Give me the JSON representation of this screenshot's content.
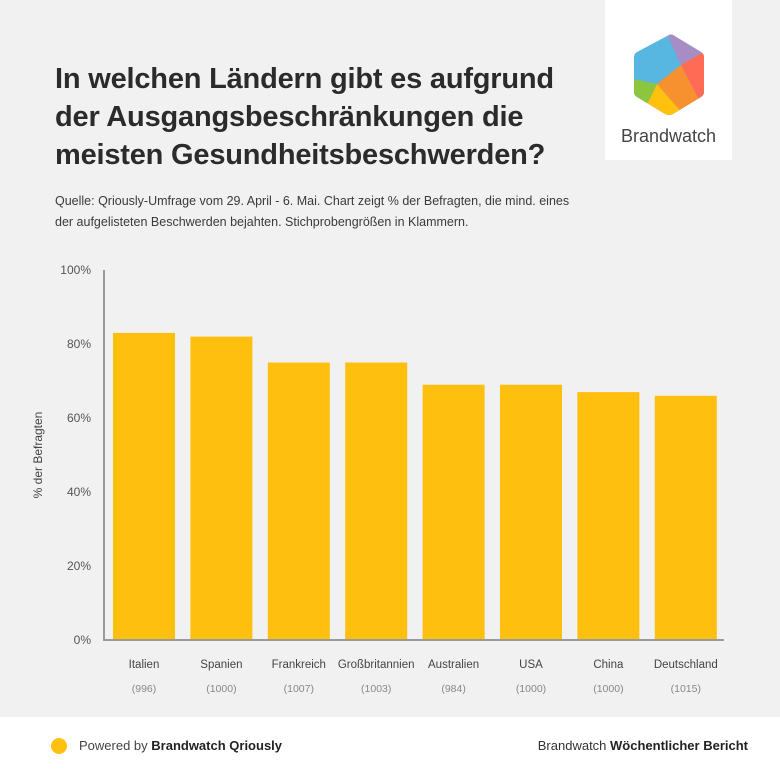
{
  "header": {
    "title": "In welchen Ländern gibt es aufgrund der Ausgangsbeschränkungen die meisten Gesundheitsbeschwerden?",
    "subtitle": "Quelle: Qriously-Umfrage vom 29. April - 6. Mai. Chart zeigt % der Befragten, die mind. eines der aufgelisteten Beschwerden bejahten. Stichprobengrößen in Klammern."
  },
  "logo": {
    "name": "Brandwatch",
    "icon": "brandwatch-hexagon-logo",
    "colors": [
      "#57b7e0",
      "#a88cc4",
      "#ff6b55",
      "#f7902f",
      "#ffc10e",
      "#8cc63f"
    ]
  },
  "chart_data": {
    "type": "bar",
    "title": "",
    "xlabel": "",
    "ylabel": "% der Befragten",
    "ylim": [
      0,
      100
    ],
    "yticks": [
      0,
      20,
      40,
      60,
      80,
      100
    ],
    "ytick_labels": [
      "0%",
      "20%",
      "40%",
      "60%",
      "80%",
      "100%"
    ],
    "grid": false,
    "legend": "none",
    "bar_color": "#ffbf0f",
    "categories": [
      "Italien",
      "Spanien",
      "Frankreich",
      "Großbritannien",
      "Australien",
      "USA",
      "China",
      "Deutschland"
    ],
    "sample_sizes": [
      "(996)",
      "(1000)",
      "(1007)",
      "(1003)",
      "(984)",
      "(1000)",
      "(1000)",
      "(1015)"
    ],
    "values": [
      83,
      82,
      75,
      75,
      69,
      69,
      67,
      66
    ]
  },
  "footer": {
    "powered_prefix": "Powered by ",
    "powered_brand": "Brandwatch Qriously",
    "report_prefix": "Brandwatch ",
    "report_name": "Wöchentlicher Bericht",
    "dot_color": "#ffc10e"
  }
}
